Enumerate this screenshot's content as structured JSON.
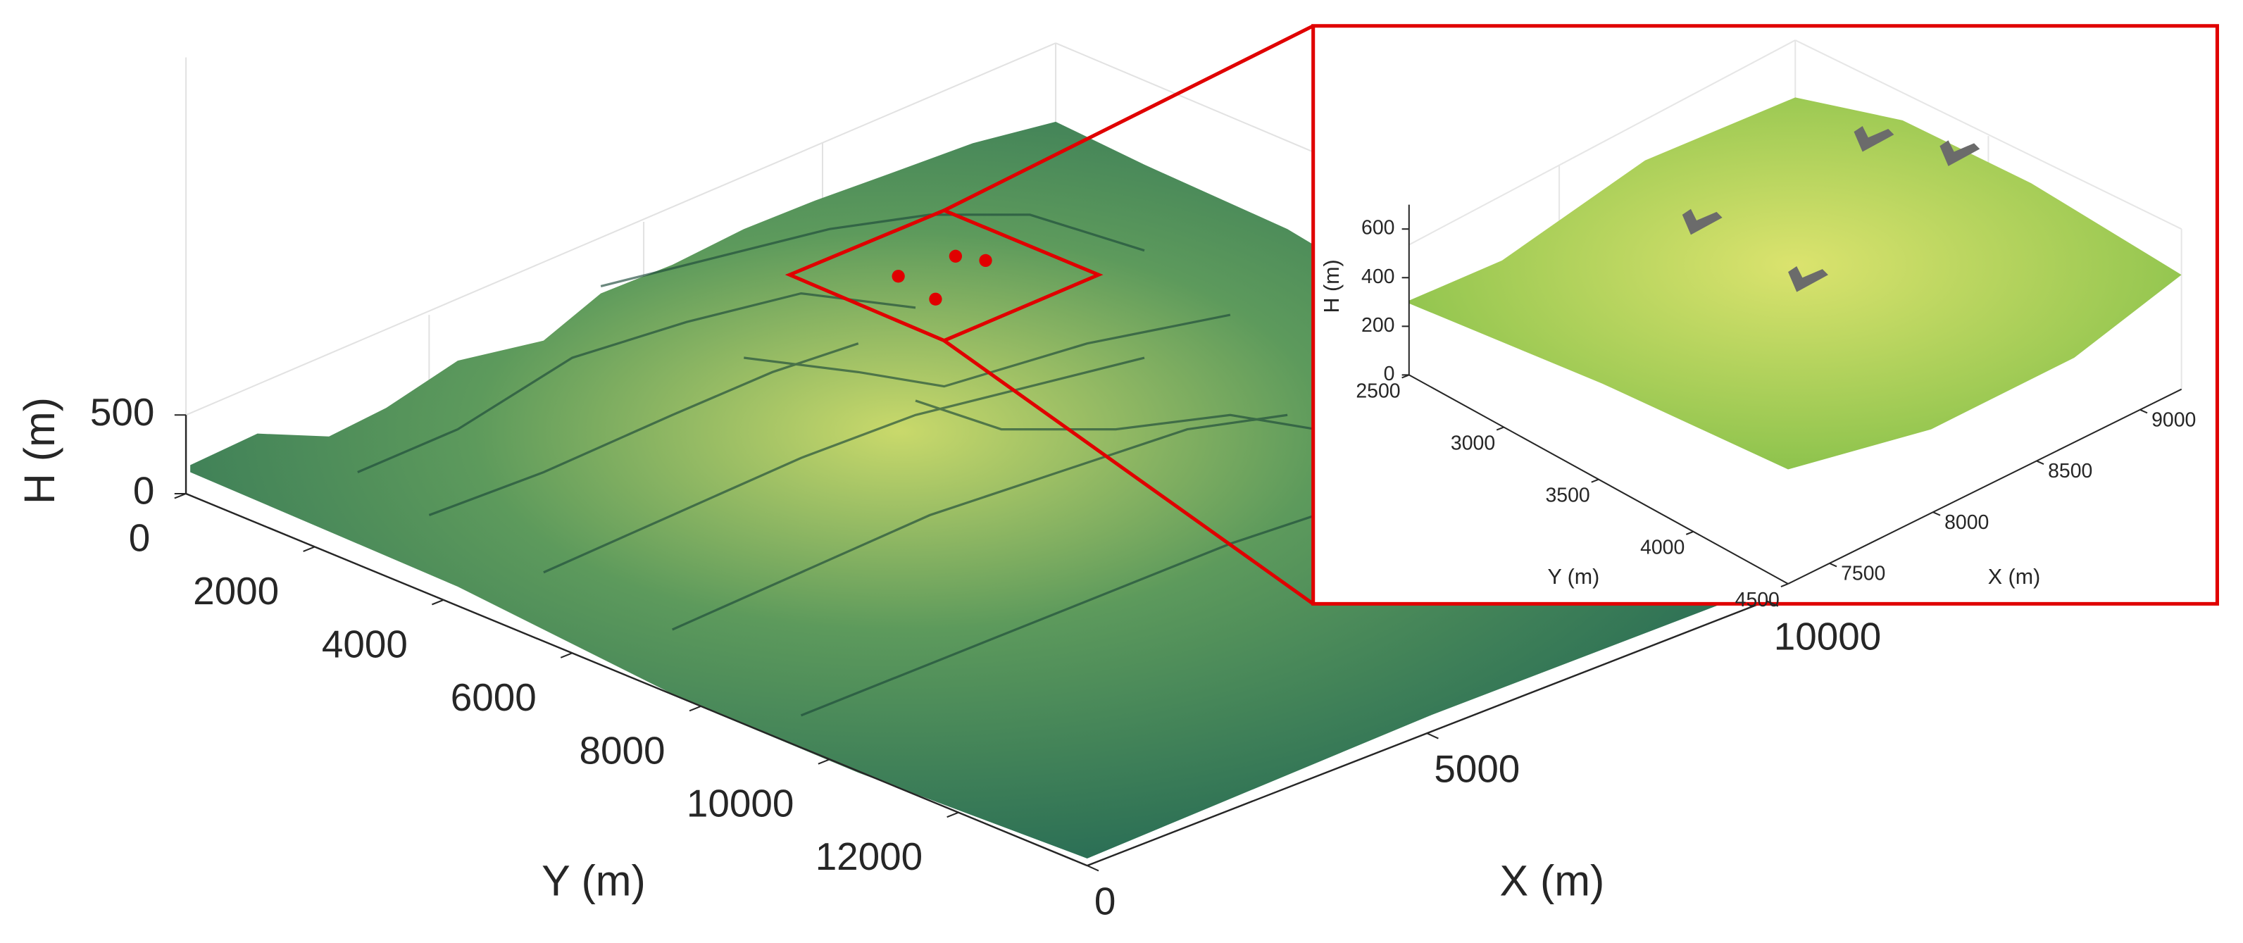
{
  "chart_data": [
    {
      "type": "surface3d",
      "xlabel": "X (m)",
      "ylabel": "Y (m)",
      "zlabel": "H (m)",
      "xlim": [
        0,
        10000
      ],
      "ylim": [
        0,
        14000
      ],
      "zlim": [
        0,
        500
      ],
      "xticks": [
        0,
        5000,
        10000
      ],
      "yticks": [
        0,
        2000,
        4000,
        6000,
        8000,
        10000,
        12000
      ],
      "zticks": [
        0,
        500
      ],
      "colors": [
        "#2a6e55",
        "#c9d96b"
      ],
      "zoom_color": "#e00000"
    },
    {
      "type": "surface3d",
      "xlabel": "X (m)",
      "ylabel": "Y (m)",
      "zlabel": "H (m)",
      "xlim": [
        7300,
        9200
      ],
      "ylim": [
        2500,
        4500
      ],
      "zlim": [
        0,
        700
      ],
      "xticks": [
        7500,
        8000,
        8500,
        9000
      ],
      "yticks": [
        2500,
        3000,
        3500,
        4000,
        4500
      ],
      "zticks": [
        0,
        200,
        400,
        600
      ],
      "colors": [
        "#86c04a",
        "#dbe36e"
      ],
      "zoom_color": "#e00000"
    }
  ]
}
